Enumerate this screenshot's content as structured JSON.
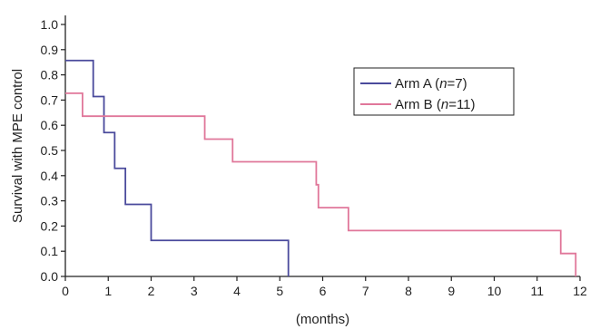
{
  "chart_data": {
    "type": "line",
    "step": true,
    "title": "",
    "xlabel": "(months)",
    "ylabel": "Survival with MPE control",
    "xlim": [
      0,
      12
    ],
    "ylim": [
      0.0,
      1.0
    ],
    "x_ticks": [
      0,
      1,
      2,
      3,
      4,
      5,
      6,
      7,
      8,
      9,
      10,
      11,
      12
    ],
    "y_ticks": [
      "0.0",
      "0.1",
      "0.2",
      "0.3",
      "0.4",
      "0.5",
      "0.6",
      "0.7",
      "0.8",
      "0.9",
      "1.0"
    ],
    "grid": false,
    "legend_position": "top-right",
    "series": [
      {
        "name": "Arm A",
        "n": "7",
        "color": "#4a4a9c",
        "points": [
          [
            0,
            0.857
          ],
          [
            0.65,
            0.857
          ],
          [
            0.65,
            0.714
          ],
          [
            0.9,
            0.714
          ],
          [
            0.9,
            0.571
          ],
          [
            1.15,
            0.571
          ],
          [
            1.15,
            0.429
          ],
          [
            1.4,
            0.429
          ],
          [
            1.4,
            0.286
          ],
          [
            2.0,
            0.286
          ],
          [
            2.0,
            0.143
          ],
          [
            5.2,
            0.143
          ],
          [
            5.2,
            0.0
          ]
        ]
      },
      {
        "name": "Arm B",
        "n": "11",
        "color": "#e0779a",
        "points": [
          [
            0,
            0.727
          ],
          [
            0.4,
            0.727
          ],
          [
            0.4,
            0.636
          ],
          [
            3.25,
            0.636
          ],
          [
            3.25,
            0.545
          ],
          [
            3.9,
            0.545
          ],
          [
            3.9,
            0.455
          ],
          [
            5.85,
            0.455
          ],
          [
            5.85,
            0.364
          ],
          [
            5.9,
            0.364
          ],
          [
            5.9,
            0.273
          ],
          [
            6.6,
            0.273
          ],
          [
            6.6,
            0.182
          ],
          [
            11.55,
            0.182
          ],
          [
            11.55,
            0.091
          ],
          [
            11.9,
            0.091
          ],
          [
            11.9,
            0.0
          ]
        ]
      }
    ]
  }
}
